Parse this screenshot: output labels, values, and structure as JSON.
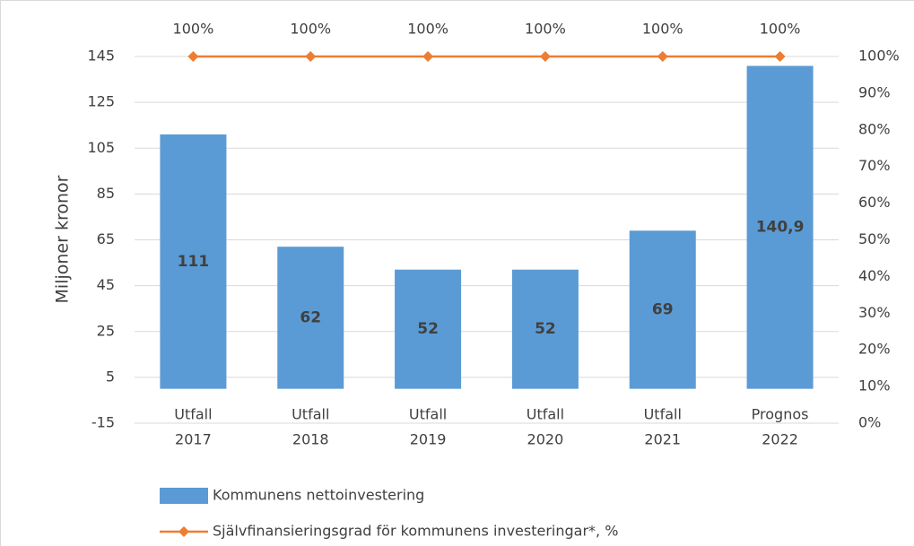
{
  "chart_data": {
    "type": "bar",
    "y_label": "Miljoner kronor",
    "categories": [
      [
        "Utfall",
        "2017"
      ],
      [
        "Utfall",
        "2018"
      ],
      [
        "Utfall",
        "2019"
      ],
      [
        "Utfall",
        "2020"
      ],
      [
        "Utfall",
        "2021"
      ],
      [
        "Prognos",
        "2022"
      ]
    ],
    "series": [
      {
        "name": "Kommunens nettoinvestering",
        "type": "bar",
        "color": "#5b9bd5",
        "values": [
          111,
          62,
          52,
          52,
          69,
          140.9
        ],
        "value_labels": [
          "111",
          "62",
          "52",
          "52",
          "69",
          "140,9"
        ]
      },
      {
        "name": "Självfinansieringsgrad för kommunens investeringar*, %",
        "type": "line",
        "axis": "y2",
        "color": "#ed7d31",
        "values": [
          100,
          100,
          100,
          100,
          100,
          100
        ],
        "value_labels": [
          "100%",
          "100%",
          "100%",
          "100%",
          "100%",
          "100%"
        ]
      }
    ],
    "ylim": [
      -15,
      145
    ],
    "yticks": [
      -15,
      5,
      25,
      45,
      65,
      85,
      105,
      125,
      145
    ],
    "y2lim": [
      0,
      100
    ],
    "y2ticks": [
      {
        "value": 0,
        "label": "0%"
      },
      {
        "value": 10,
        "label": "10%"
      },
      {
        "value": 20,
        "label": "20%"
      },
      {
        "value": 30,
        "label": "30%"
      },
      {
        "value": 40,
        "label": "40%"
      },
      {
        "value": 50,
        "label": "50%"
      },
      {
        "value": 60,
        "label": "60%"
      },
      {
        "value": 70,
        "label": "70%"
      },
      {
        "value": 80,
        "label": "80%"
      },
      {
        "value": 90,
        "label": "90%"
      },
      {
        "value": 100,
        "label": "100%"
      }
    ],
    "grid": true,
    "legend": "bottom"
  }
}
